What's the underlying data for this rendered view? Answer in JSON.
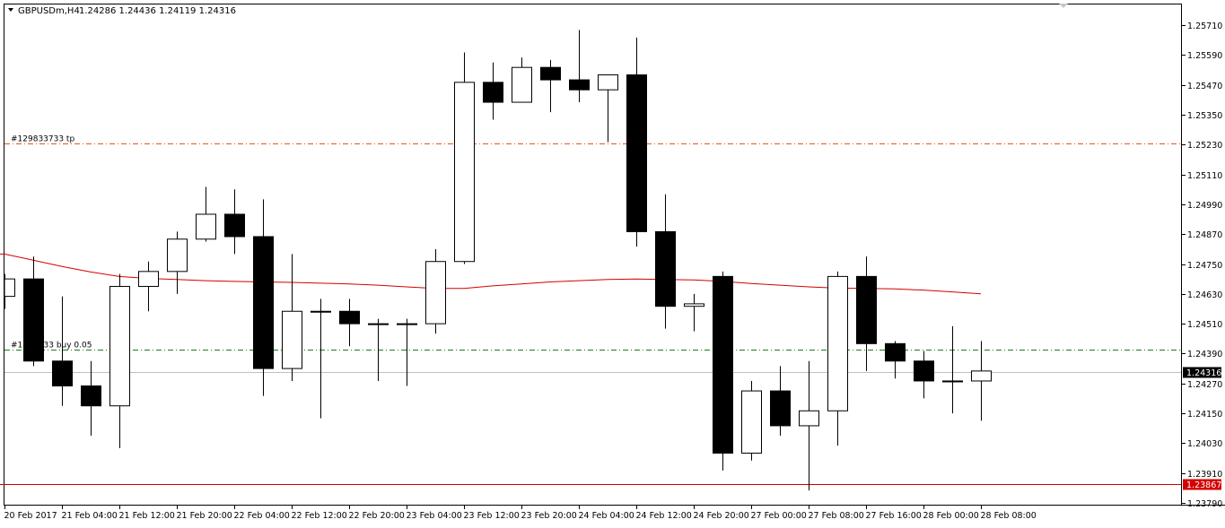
{
  "header": {
    "symbol_label": "GBPUSDm,H4",
    "ohlc_text": "1.24286 1.24436 1.24119 1.24316"
  },
  "chart_data": {
    "type": "candlestick",
    "symbol": "GBPUSDm",
    "timeframe": "H4",
    "ylim": [
      1.2378,
      1.2575
    ],
    "y_ticks": [
      "1.25710",
      "1.25590",
      "1.25470",
      "1.25350",
      "1.25230",
      "1.25110",
      "1.24990",
      "1.24870",
      "1.24750",
      "1.24630",
      "1.24510",
      "1.24390",
      "1.24270",
      "1.24150",
      "1.24030",
      "1.23910",
      "1.23790"
    ],
    "x_ticks": [
      {
        "bar": 0,
        "label": "20 Feb 2017"
      },
      {
        "bar": 2,
        "label": "21 Feb 04:00"
      },
      {
        "bar": 4,
        "label": "21 Feb 12:00"
      },
      {
        "bar": 6,
        "label": "21 Feb 20:00"
      },
      {
        "bar": 8,
        "label": "22 Feb 04:00"
      },
      {
        "bar": 10,
        "label": "22 Feb 12:00"
      },
      {
        "bar": 12,
        "label": "22 Feb 20:00"
      },
      {
        "bar": 14,
        "label": "23 Feb 04:00"
      },
      {
        "bar": 16,
        "label": "23 Feb 12:00"
      },
      {
        "bar": 18,
        "label": "23 Feb 20:00"
      },
      {
        "bar": 20,
        "label": "24 Feb 04:00"
      },
      {
        "bar": 22,
        "label": "24 Feb 12:00"
      },
      {
        "bar": 24,
        "label": "24 Feb 20:00"
      },
      {
        "bar": 26,
        "label": "27 Feb 00:00"
      },
      {
        "bar": 28,
        "label": "27 Feb 08:00"
      },
      {
        "bar": 30,
        "label": "27 Feb 16:00"
      },
      {
        "bar": 32,
        "label": "28 Feb 00:00"
      },
      {
        "bar": 34,
        "label": "28 Feb 08:00"
      }
    ],
    "candles": [
      {
        "o": 1.2462,
        "h": 1.2471,
        "l": 1.2457,
        "c": 1.2469
      },
      {
        "o": 1.2469,
        "h": 1.2478,
        "l": 1.2434,
        "c": 1.2436
      },
      {
        "o": 1.2436,
        "h": 1.2462,
        "l": 1.2418,
        "c": 1.2426
      },
      {
        "o": 1.2426,
        "h": 1.2436,
        "l": 1.2406,
        "c": 1.2418
      },
      {
        "o": 1.2418,
        "h": 1.2471,
        "l": 1.2401,
        "c": 1.2466
      },
      {
        "o": 1.2466,
        "h": 1.2476,
        "l": 1.2456,
        "c": 1.2472
      },
      {
        "o": 1.2472,
        "h": 1.2488,
        "l": 1.2463,
        "c": 1.2485
      },
      {
        "o": 1.2485,
        "h": 1.2506,
        "l": 1.2484,
        "c": 1.2495
      },
      {
        "o": 1.2495,
        "h": 1.2505,
        "l": 1.2479,
        "c": 1.2486
      },
      {
        "o": 1.2486,
        "h": 1.2501,
        "l": 1.2422,
        "c": 1.2433
      },
      {
        "o": 1.2433,
        "h": 1.2479,
        "l": 1.2428,
        "c": 1.2456
      },
      {
        "o": 1.2456,
        "h": 1.2461,
        "l": 1.2413,
        "c": 1.2456
      },
      {
        "o": 1.2456,
        "h": 1.2461,
        "l": 1.2442,
        "c": 1.2451
      },
      {
        "o": 1.2451,
        "h": 1.2453,
        "l": 1.2428,
        "c": 1.2451
      },
      {
        "o": 1.2451,
        "h": 1.2453,
        "l": 1.2426,
        "c": 1.2451
      },
      {
        "o": 1.2451,
        "h": 1.2481,
        "l": 1.2447,
        "c": 1.2476
      },
      {
        "o": 1.2476,
        "h": 1.256,
        "l": 1.2475,
        "c": 1.2548
      },
      {
        "o": 1.2548,
        "h": 1.2556,
        "l": 1.2533,
        "c": 1.254
      },
      {
        "o": 1.254,
        "h": 1.2558,
        "l": 1.254,
        "c": 1.2554
      },
      {
        "o": 1.2554,
        "h": 1.2557,
        "l": 1.2536,
        "c": 1.2549
      },
      {
        "o": 1.2549,
        "h": 1.2569,
        "l": 1.254,
        "c": 1.2545
      },
      {
        "o": 1.2545,
        "h": 1.2551,
        "l": 1.2524,
        "c": 1.2551
      },
      {
        "o": 1.2551,
        "h": 1.2566,
        "l": 1.2482,
        "c": 1.2488
      },
      {
        "o": 1.2488,
        "h": 1.2503,
        "l": 1.2449,
        "c": 1.2458
      },
      {
        "o": 1.2458,
        "h": 1.2463,
        "l": 1.2448,
        "c": 1.2459
      },
      {
        "o": 1.247,
        "h": 1.2472,
        "l": 1.2392,
        "c": 1.2399
      },
      {
        "o": 1.2399,
        "h": 1.2428,
        "l": 1.2396,
        "c": 1.2424
      },
      {
        "o": 1.2424,
        "h": 1.2434,
        "l": 1.2406,
        "c": 1.241
      },
      {
        "o": 1.241,
        "h": 1.2436,
        "l": 1.2384,
        "c": 1.2416
      },
      {
        "o": 1.2416,
        "h": 1.2472,
        "l": 1.2402,
        "c": 1.247
      },
      {
        "o": 1.247,
        "h": 1.2478,
        "l": 1.2432,
        "c": 1.2443
      },
      {
        "o": 1.2443,
        "h": 1.2444,
        "l": 1.2429,
        "c": 1.2436
      },
      {
        "o": 1.2436,
        "h": 1.244,
        "l": 1.2421,
        "c": 1.2428
      },
      {
        "o": 1.2428,
        "h": 1.245,
        "l": 1.2415,
        "c": 1.2428
      },
      {
        "o": 1.2428,
        "h": 1.2444,
        "l": 1.2412,
        "c": 1.2432
      }
    ],
    "moving_average": {
      "color": "#d40000",
      "values": [
        1.2479,
        1.24765,
        1.2474,
        1.24718,
        1.247,
        1.24692,
        1.24688,
        1.24683,
        1.2468,
        1.24678,
        1.24676,
        1.24673,
        1.2467,
        1.24665,
        1.24658,
        1.24652,
        1.24652,
        1.24662,
        1.2467,
        1.24678,
        1.24683,
        1.24688,
        1.2469,
        1.24688,
        1.24686,
        1.2468,
        1.24672,
        1.24665,
        1.24658,
        1.24653,
        1.24652,
        1.2465,
        1.24645,
        1.24638,
        1.2463
      ]
    },
    "order_lines": [
      {
        "label": "#129833733 tp",
        "price": 1.25235,
        "color": "#e05a1a",
        "style": "dash-dot"
      },
      {
        "label": "#12[?]733 buy 0.05",
        "price": 1.24405,
        "color": "#1e7a1e",
        "style": "dash-dot"
      }
    ],
    "bid_line": {
      "price": 1.24316,
      "label": "1.24316",
      "color": "#c0c0c0"
    },
    "level_line": {
      "price": 1.23867,
      "label": "1.23867",
      "color": "#d40000"
    }
  }
}
